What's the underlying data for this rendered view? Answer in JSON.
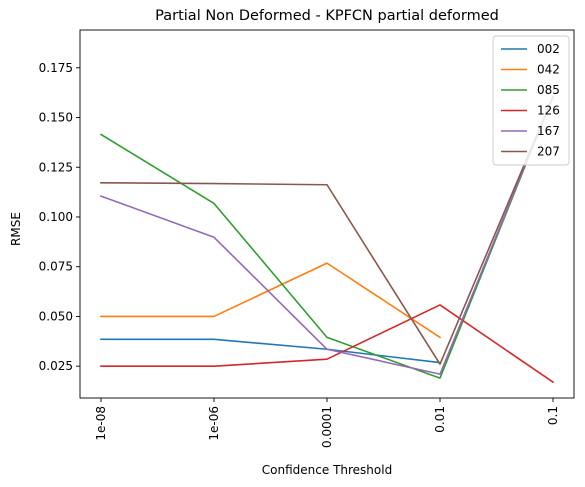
{
  "chart_data": {
    "type": "line",
    "title": "Partial Non Deformed - KPFCN partial deformed",
    "xlabel": "Confidence Threshold",
    "ylabel": "RMSE",
    "x": [
      "1e-08",
      "1e-06",
      "0.0001",
      "0.01",
      "0.1"
    ],
    "ylim": [
      0.009,
      0.194
    ],
    "yticks": [
      "0.025",
      "0.050",
      "0.075",
      "0.100",
      "0.125",
      "0.150",
      "0.175"
    ],
    "grid": false,
    "legend_position": "top-right",
    "series": [
      {
        "name": "002",
        "color": "#1f77b4",
        "values": [
          0.0385,
          0.0385,
          0.0335,
          0.0268,
          null
        ]
      },
      {
        "name": "042",
        "color": "#ff7f0e",
        "values": [
          0.05,
          0.05,
          0.0768,
          0.0395,
          null
        ]
      },
      {
        "name": "085",
        "color": "#2ca02c",
        "values": [
          0.1415,
          0.1068,
          0.0395,
          0.019,
          0.1605
        ]
      },
      {
        "name": "126",
        "color": "#d62728",
        "values": [
          0.025,
          0.025,
          0.0285,
          0.0558,
          0.017
        ]
      },
      {
        "name": "167",
        "color": "#9467bd",
        "values": [
          0.1105,
          0.0898,
          0.0335,
          0.021,
          0.1605
        ]
      },
      {
        "name": "207",
        "color": "#8c564b",
        "values": [
          0.1172,
          0.1168,
          0.1162,
          0.026,
          0.1605
        ]
      }
    ]
  }
}
